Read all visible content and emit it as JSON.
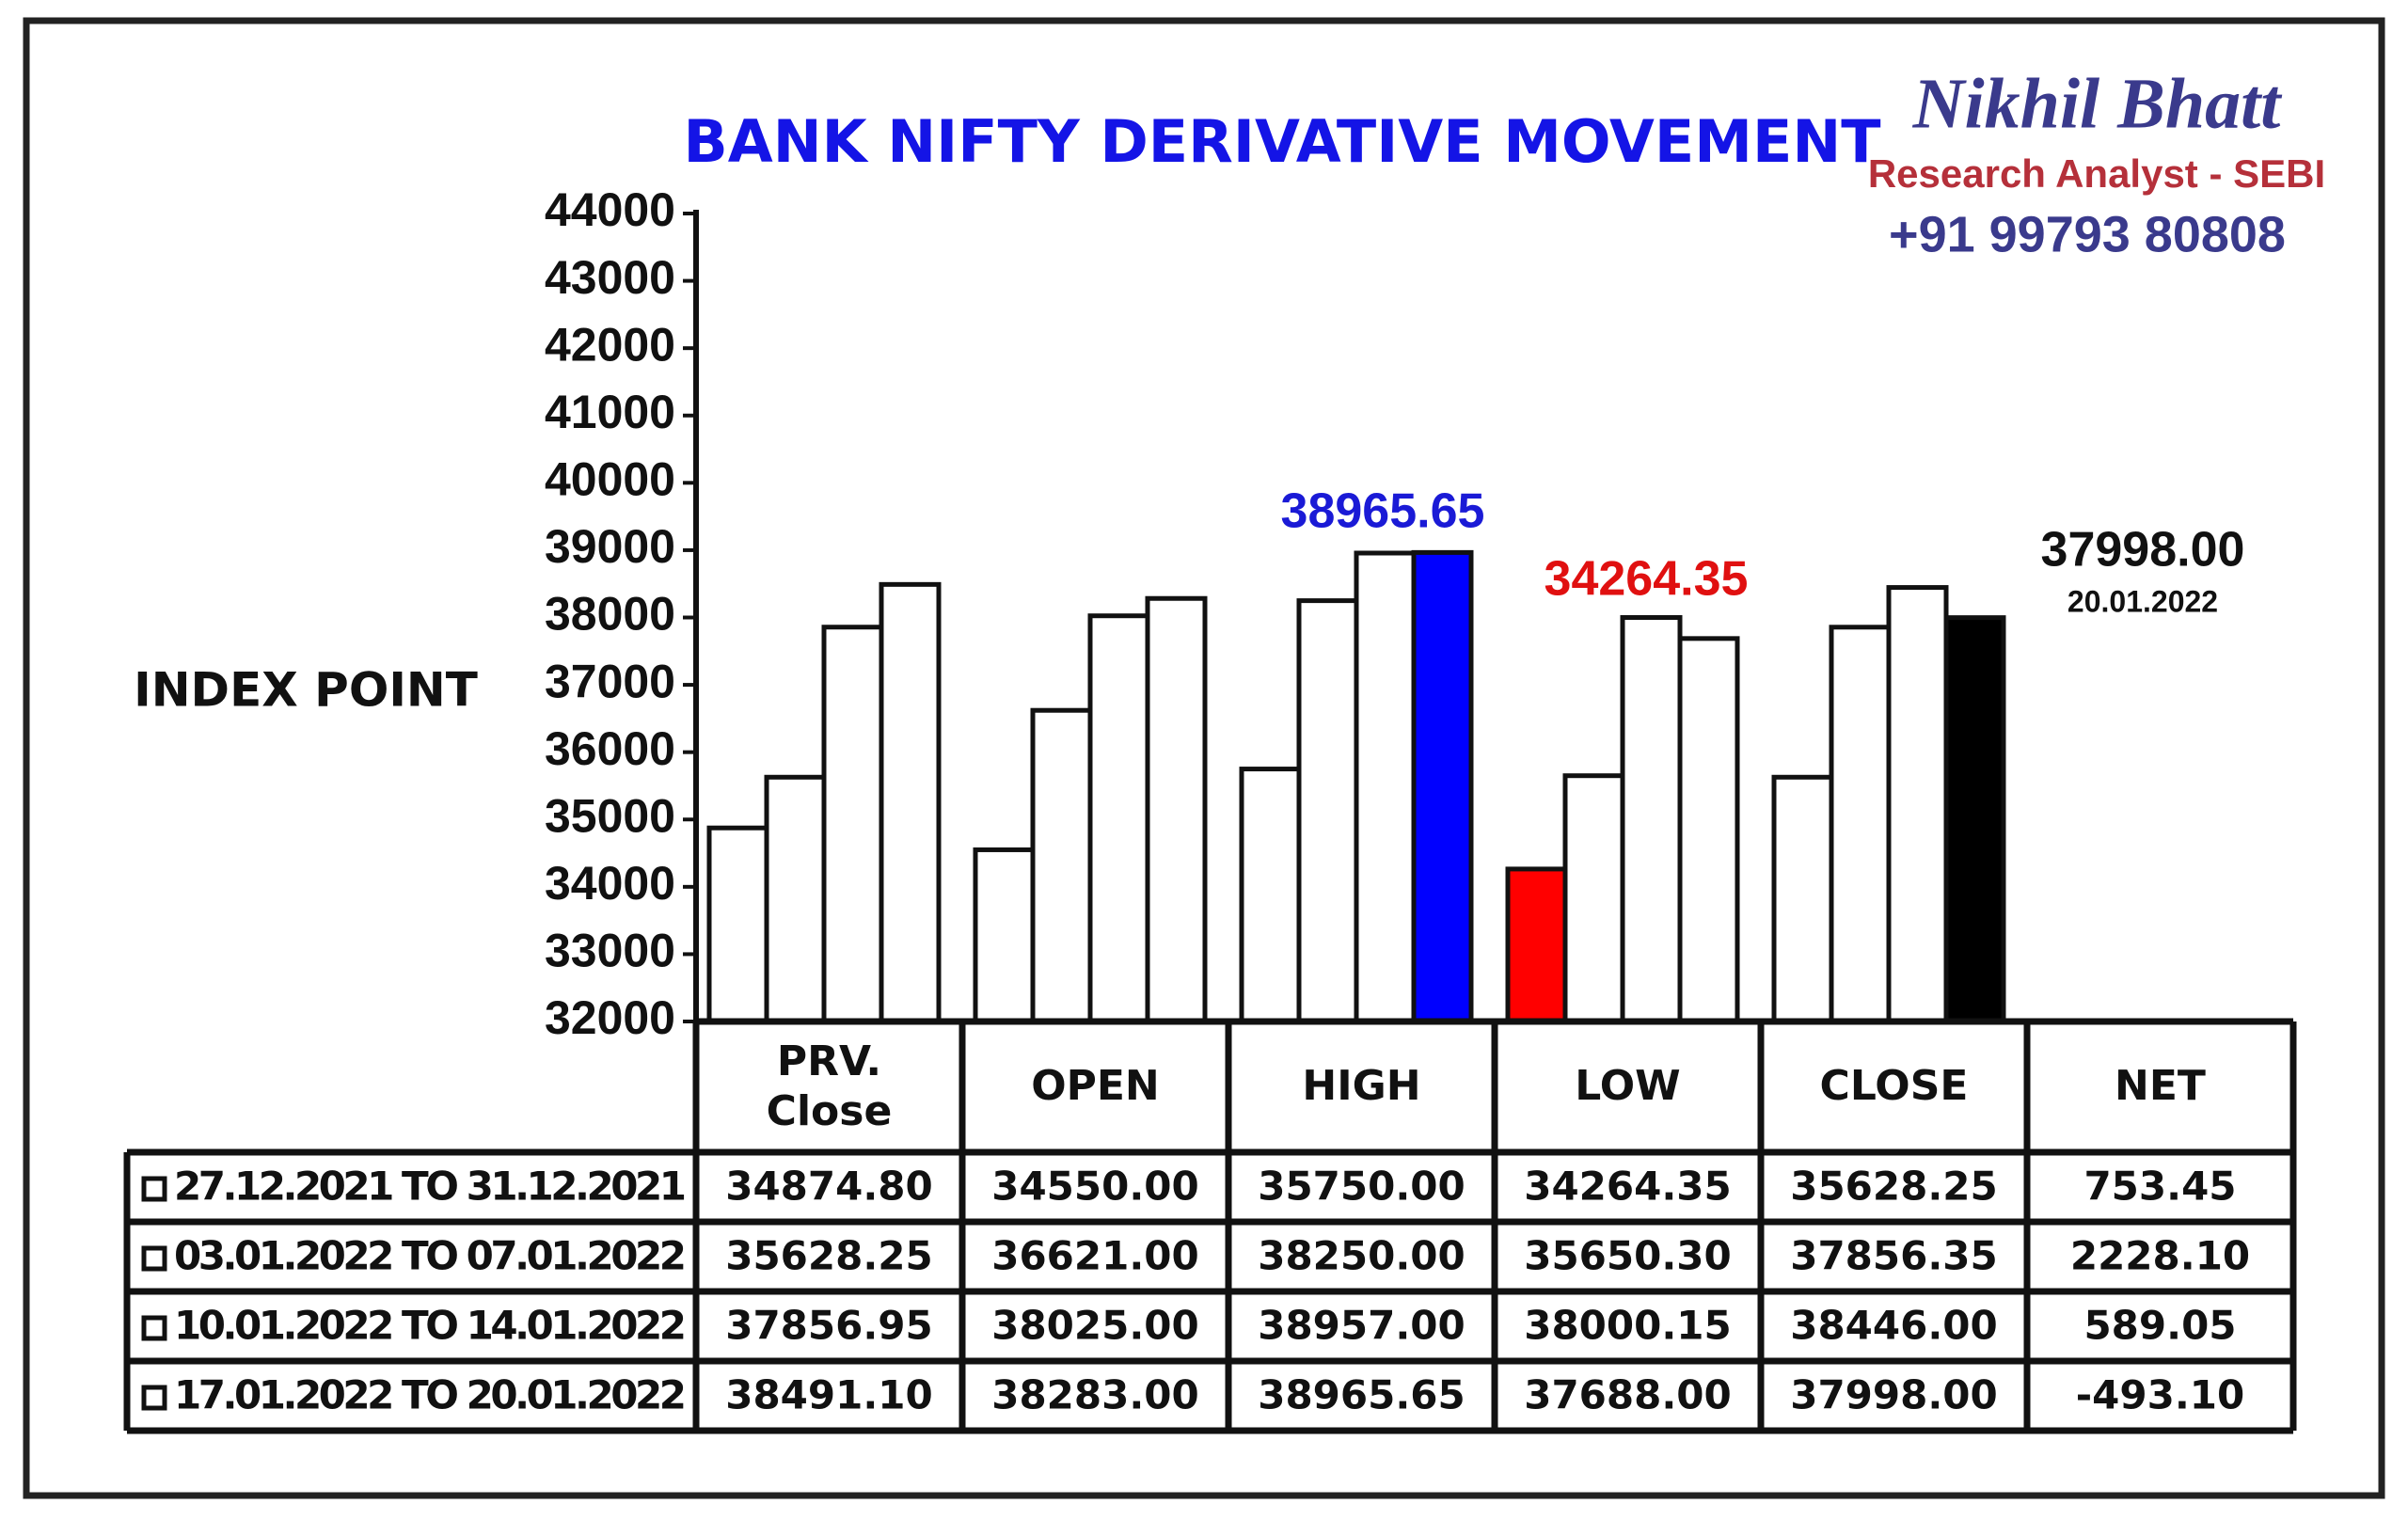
{
  "chart_data": {
    "type": "bar",
    "title": "BANK NIFTY DERIVATIVE MOVEMENT",
    "y_label": "INDEX POINT",
    "categories": [
      "PRV. Close",
      "OPEN",
      "HIGH",
      "LOW",
      "CLOSE"
    ],
    "net_header": "NET",
    "ylim": [
      32000,
      44000
    ],
    "yticks": [
      32000,
      33000,
      34000,
      35000,
      36000,
      37000,
      38000,
      39000,
      40000,
      41000,
      42000,
      43000,
      44000
    ],
    "series": [
      {
        "name": "27.12.2021 TO 31.12.2021",
        "values": [
          34874.8,
          34550,
          35750,
          34264.35,
          35628.25
        ],
        "value_labels": [
          "34874.80",
          "34550.00",
          "35750.00",
          "34264.35",
          "35628.25"
        ],
        "net": "753.45",
        "colors": [
          "#ffffff",
          "#ffffff",
          "#ffffff",
          "#ff0000",
          "#ffffff"
        ]
      },
      {
        "name": "03.01.2022 TO 07.01.2022",
        "values": [
          35628.25,
          36621,
          38250,
          35650.3,
          37856.35
        ],
        "value_labels": [
          "35628.25",
          "36621.00",
          "38250.00",
          "35650.30",
          "37856.35"
        ],
        "net": "2228.10",
        "colors": [
          "#ffffff",
          "#ffffff",
          "#ffffff",
          "#ffffff",
          "#ffffff"
        ]
      },
      {
        "name": "10.01.2022 TO 14.01.2022",
        "values": [
          37856.95,
          38025,
          38957,
          38000.15,
          38446
        ],
        "value_labels": [
          "37856.95",
          "38025.00",
          "38957.00",
          "38000.15",
          "38446.00"
        ],
        "net": "589.05",
        "colors": [
          "#ffffff",
          "#ffffff",
          "#ffffff",
          "#ffffff",
          "#ffffff"
        ]
      },
      {
        "name": "17.01.2022 TO 20.01.2022",
        "values": [
          38491.1,
          38283,
          38965.65,
          37688,
          37998
        ],
        "value_labels": [
          "38491.10",
          "38283.00",
          "38965.65",
          "37688.00",
          "37998.00"
        ],
        "net": "-493.10",
        "colors": [
          "#ffffff",
          "#ffffff",
          "#0000ff",
          "#ffffff",
          "#000000"
        ]
      }
    ],
    "annotations": [
      {
        "text": "38965.65",
        "color": "#1a1ad6"
      },
      {
        "text": "34264.35",
        "color": "#e01010"
      },
      {
        "text": "37998.00",
        "color": "#111111",
        "subtext": "20.01.2022"
      }
    ]
  },
  "branding": {
    "name": "Nikhil Bhatt",
    "role": "Research Analyst - SEBI",
    "phone": "+91 99793 80808"
  }
}
